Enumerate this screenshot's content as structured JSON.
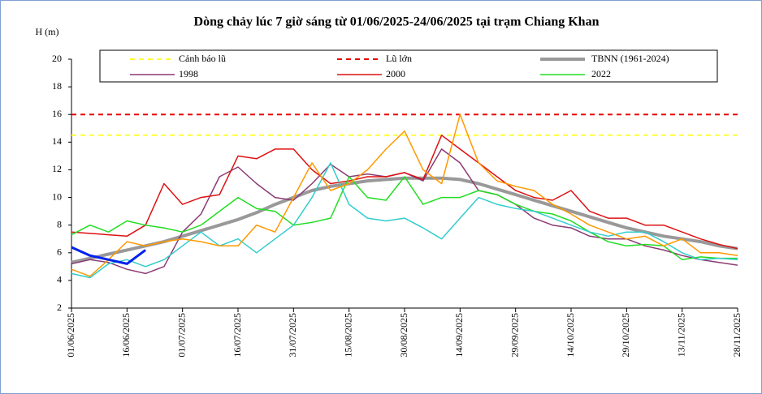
{
  "chart_data": {
    "type": "line",
    "title": "Dòng chảy lúc 7 giờ sáng từ 01/06/2025-24/06/2025 tại trạm Chiang Khan",
    "y_label": "H (m)",
    "x": [
      "01/06/2025",
      "06/06/2025",
      "11/06/2025",
      "16/06/2025",
      "21/06/2025",
      "26/06/2025",
      "01/07/2025",
      "06/07/2025",
      "11/07/2025",
      "16/07/2025",
      "21/07/2025",
      "26/07/2025",
      "31/07/2025",
      "05/08/2025",
      "10/08/2025",
      "15/08/2025",
      "20/08/2025",
      "25/08/2025",
      "30/08/2025",
      "04/09/2025",
      "09/09/2025",
      "14/09/2025",
      "19/09/2025",
      "24/09/2025",
      "29/09/2025",
      "04/10/2025",
      "09/10/2025",
      "14/10/2025",
      "19/10/2025",
      "24/10/2025",
      "29/10/2025",
      "03/11/2025",
      "08/11/2025",
      "13/11/2025",
      "18/11/2025",
      "23/11/2025",
      "28/11/2025"
    ],
    "xticks": [
      "01/06/2025",
      "16/06/2025",
      "01/07/2025",
      "16/07/2025",
      "31/07/2025",
      "15/08/2025",
      "30/08/2025",
      "14/09/2025",
      "29/09/2025",
      "14/10/2025",
      "29/10/2025",
      "13/11/2025",
      "28/11/2025"
    ],
    "ylim": [
      2,
      20
    ],
    "yticks": [
      2,
      4,
      6,
      8,
      10,
      12,
      14,
      16,
      18,
      20
    ],
    "grid": false,
    "series": [
      {
        "name": "Cảnh báo lũ",
        "color": "#ffff33",
        "dash": true,
        "line_width": 2,
        "values": [
          14.5,
          14.5,
          14.5,
          14.5,
          14.5,
          14.5,
          14.5,
          14.5,
          14.5,
          14.5,
          14.5,
          14.5,
          14.5,
          14.5,
          14.5,
          14.5,
          14.5,
          14.5,
          14.5,
          14.5,
          14.5,
          14.5,
          14.5,
          14.5,
          14.5,
          14.5,
          14.5,
          14.5,
          14.5,
          14.5,
          14.5,
          14.5,
          14.5,
          14.5,
          14.5,
          14.5,
          14.5
        ]
      },
      {
        "name": "Lũ lớn",
        "color": "#e60000",
        "dash": true,
        "line_width": 2,
        "values": [
          16,
          16,
          16,
          16,
          16,
          16,
          16,
          16,
          16,
          16,
          16,
          16,
          16,
          16,
          16,
          16,
          16,
          16,
          16,
          16,
          16,
          16,
          16,
          16,
          16,
          16,
          16,
          16,
          16,
          16,
          16,
          16,
          16,
          16,
          16,
          16,
          16
        ]
      },
      {
        "name": "TBNN (1961-2024)",
        "color": "#999999",
        "dash": false,
        "line_width": 4,
        "values": [
          5.3,
          5.6,
          5.9,
          6.2,
          6.5,
          6.8,
          7.2,
          7.6,
          8.0,
          8.4,
          8.9,
          9.5,
          10.0,
          10.5,
          10.8,
          11.0,
          11.2,
          11.3,
          11.4,
          11.4,
          11.4,
          11.3,
          11.0,
          10.6,
          10.2,
          9.8,
          9.4,
          9.0,
          8.6,
          8.2,
          7.8,
          7.5,
          7.2,
          7.0,
          6.8,
          6.5,
          6.3
        ]
      },
      {
        "name": "1998",
        "color": "#8b3a73",
        "dash": false,
        "line_width": 1.5,
        "values": [
          5.2,
          5.5,
          5.3,
          4.8,
          4.5,
          5.0,
          7.5,
          8.8,
          11.5,
          12.2,
          11.0,
          10.0,
          9.8,
          11.0,
          12.4,
          11.5,
          11.7,
          11.5,
          11.8,
          11.2,
          13.5,
          12.5,
          10.5,
          10.2,
          9.5,
          8.5,
          8.0,
          7.8,
          7.2,
          7.0,
          7.0,
          6.5,
          6.2,
          5.8,
          5.5,
          5.3,
          5.1
        ]
      },
      {
        "name": "2000",
        "color": "#dd1111",
        "dash": false,
        "line_width": 1.5,
        "values": [
          7.5,
          7.4,
          7.3,
          7.2,
          8.0,
          11.0,
          9.5,
          10.0,
          10.2,
          13.0,
          12.8,
          13.5,
          13.5,
          12.0,
          11.0,
          11.2,
          11.5,
          11.5,
          11.8,
          11.3,
          14.5,
          13.5,
          12.5,
          11.5,
          10.5,
          10.0,
          9.8,
          10.5,
          9.0,
          8.5,
          8.5,
          8.0,
          8.0,
          7.5,
          7.0,
          6.6,
          6.3
        ]
      },
      {
        "name": "2022",
        "color": "#22dd22",
        "dash": false,
        "line_width": 1.5,
        "values": [
          7.3,
          8.0,
          7.5,
          8.3,
          8.0,
          7.8,
          7.5,
          8.0,
          9.0,
          10.0,
          9.2,
          9.0,
          8.0,
          8.2,
          8.5,
          11.5,
          10.0,
          9.8,
          11.5,
          9.5,
          10.0,
          10.0,
          10.5,
          10.2,
          9.5,
          9.0,
          8.8,
          8.3,
          7.5,
          6.8,
          6.5,
          6.6,
          6.5,
          5.5,
          5.7,
          5.6,
          5.6
        ]
      },
      {
        "color": "#33cccc",
        "dash": false,
        "line_width": 1.5,
        "values": [
          4.5,
          4.2,
          5.2,
          5.5,
          5.0,
          5.5,
          6.5,
          7.5,
          6.5,
          7.0,
          6.0,
          7.0,
          8.0,
          10.0,
          12.5,
          9.5,
          8.5,
          8.3,
          8.5,
          7.8,
          7.0,
          8.5,
          10.0,
          9.5,
          9.2,
          9.0,
          8.5,
          8.0,
          7.5,
          7.2,
          7.5,
          7.5,
          6.8,
          6.0,
          5.5,
          5.6,
          5.5
        ]
      },
      {
        "color": "#ff9900",
        "dash": false,
        "line_width": 1.5,
        "values": [
          4.8,
          4.3,
          5.5,
          6.8,
          6.5,
          6.8,
          7.0,
          6.8,
          6.5,
          6.5,
          8.0,
          7.5,
          10.0,
          12.5,
          10.5,
          11.0,
          12.0,
          13.5,
          14.8,
          12.0,
          11.0,
          16.0,
          12.5,
          11.2,
          10.8,
          10.5,
          9.5,
          8.8,
          8.0,
          7.5,
          7.0,
          7.2,
          6.5,
          7.0,
          6.0,
          6.0,
          5.8
        ]
      },
      {
        "color": "#0022ee",
        "dash": false,
        "line_width": 3,
        "values": [
          6.4,
          5.8,
          5.5,
          5.2,
          6.2,
          null,
          null,
          null,
          null,
          null,
          null,
          null,
          null,
          null,
          null,
          null,
          null,
          null,
          null,
          null,
          null,
          null,
          null,
          null,
          null,
          null,
          null,
          null,
          null,
          null,
          null,
          null,
          null,
          null,
          null,
          null,
          null
        ]
      }
    ]
  }
}
